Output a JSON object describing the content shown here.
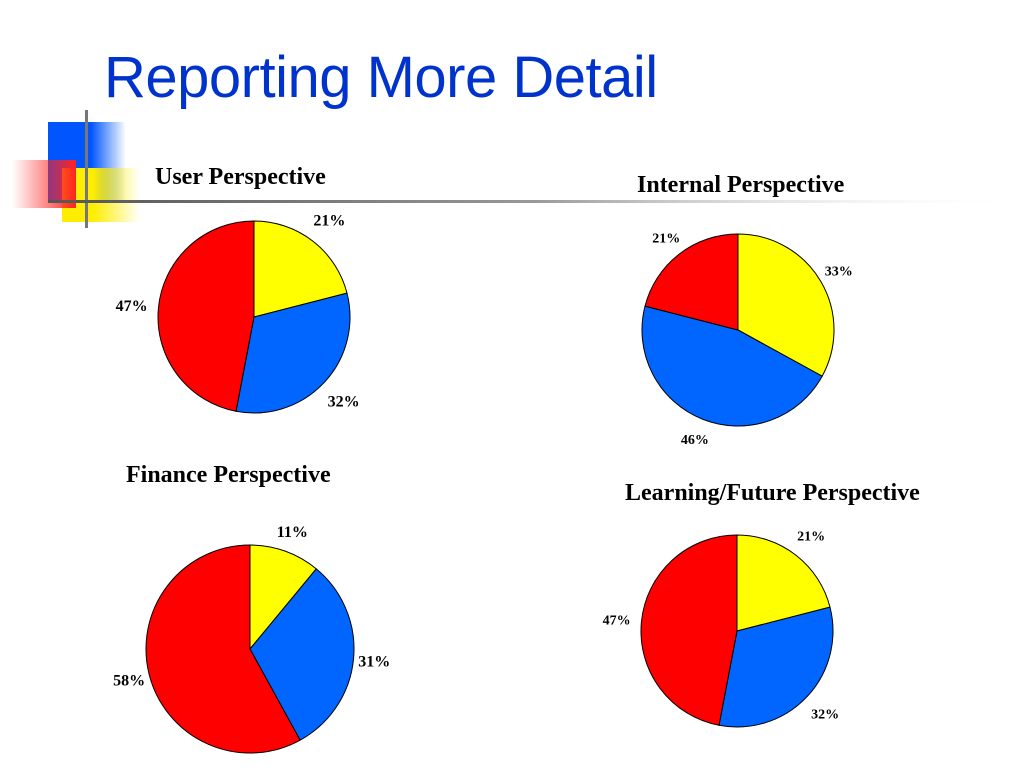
{
  "slide": {
    "title": "Reporting More Detail"
  },
  "colors": {
    "title": "#0033cc",
    "yellow": "#ffff00",
    "blue": "#0066ff",
    "red": "#ff0000",
    "deco_blue": "#0055ff",
    "deco_yellow": "#ffee00",
    "deco_red": "#ff3333"
  },
  "chart_data": [
    {
      "type": "pie",
      "title": "User Perspective",
      "slices": [
        {
          "value": 21,
          "label": "21%",
          "color": "#ffff00"
        },
        {
          "value": 32,
          "label": "32%",
          "color": "#0066ff"
        },
        {
          "value": 47,
          "label": "47%",
          "color": "#ff0000"
        }
      ]
    },
    {
      "type": "pie",
      "title": "Internal Perspective",
      "slices": [
        {
          "value": 33,
          "label": "33%",
          "color": "#ffff00"
        },
        {
          "value": 46,
          "label": "46%",
          "color": "#0066ff"
        },
        {
          "value": 21,
          "label": "21%",
          "color": "#ff0000"
        }
      ]
    },
    {
      "type": "pie",
      "title": "Finance Perspective",
      "slices": [
        {
          "value": 11,
          "label": "11%",
          "color": "#ffff00"
        },
        {
          "value": 31,
          "label": "31%",
          "color": "#0066ff"
        },
        {
          "value": 58,
          "label": "58%",
          "color": "#ff0000"
        }
      ]
    },
    {
      "type": "pie",
      "title": "Learning/Future Perspective",
      "slices": [
        {
          "value": 21,
          "label": "21%",
          "color": "#ffff00"
        },
        {
          "value": 32,
          "label": "32%",
          "color": "#0066ff"
        },
        {
          "value": 47,
          "label": "47%",
          "color": "#ff0000"
        }
      ]
    }
  ]
}
